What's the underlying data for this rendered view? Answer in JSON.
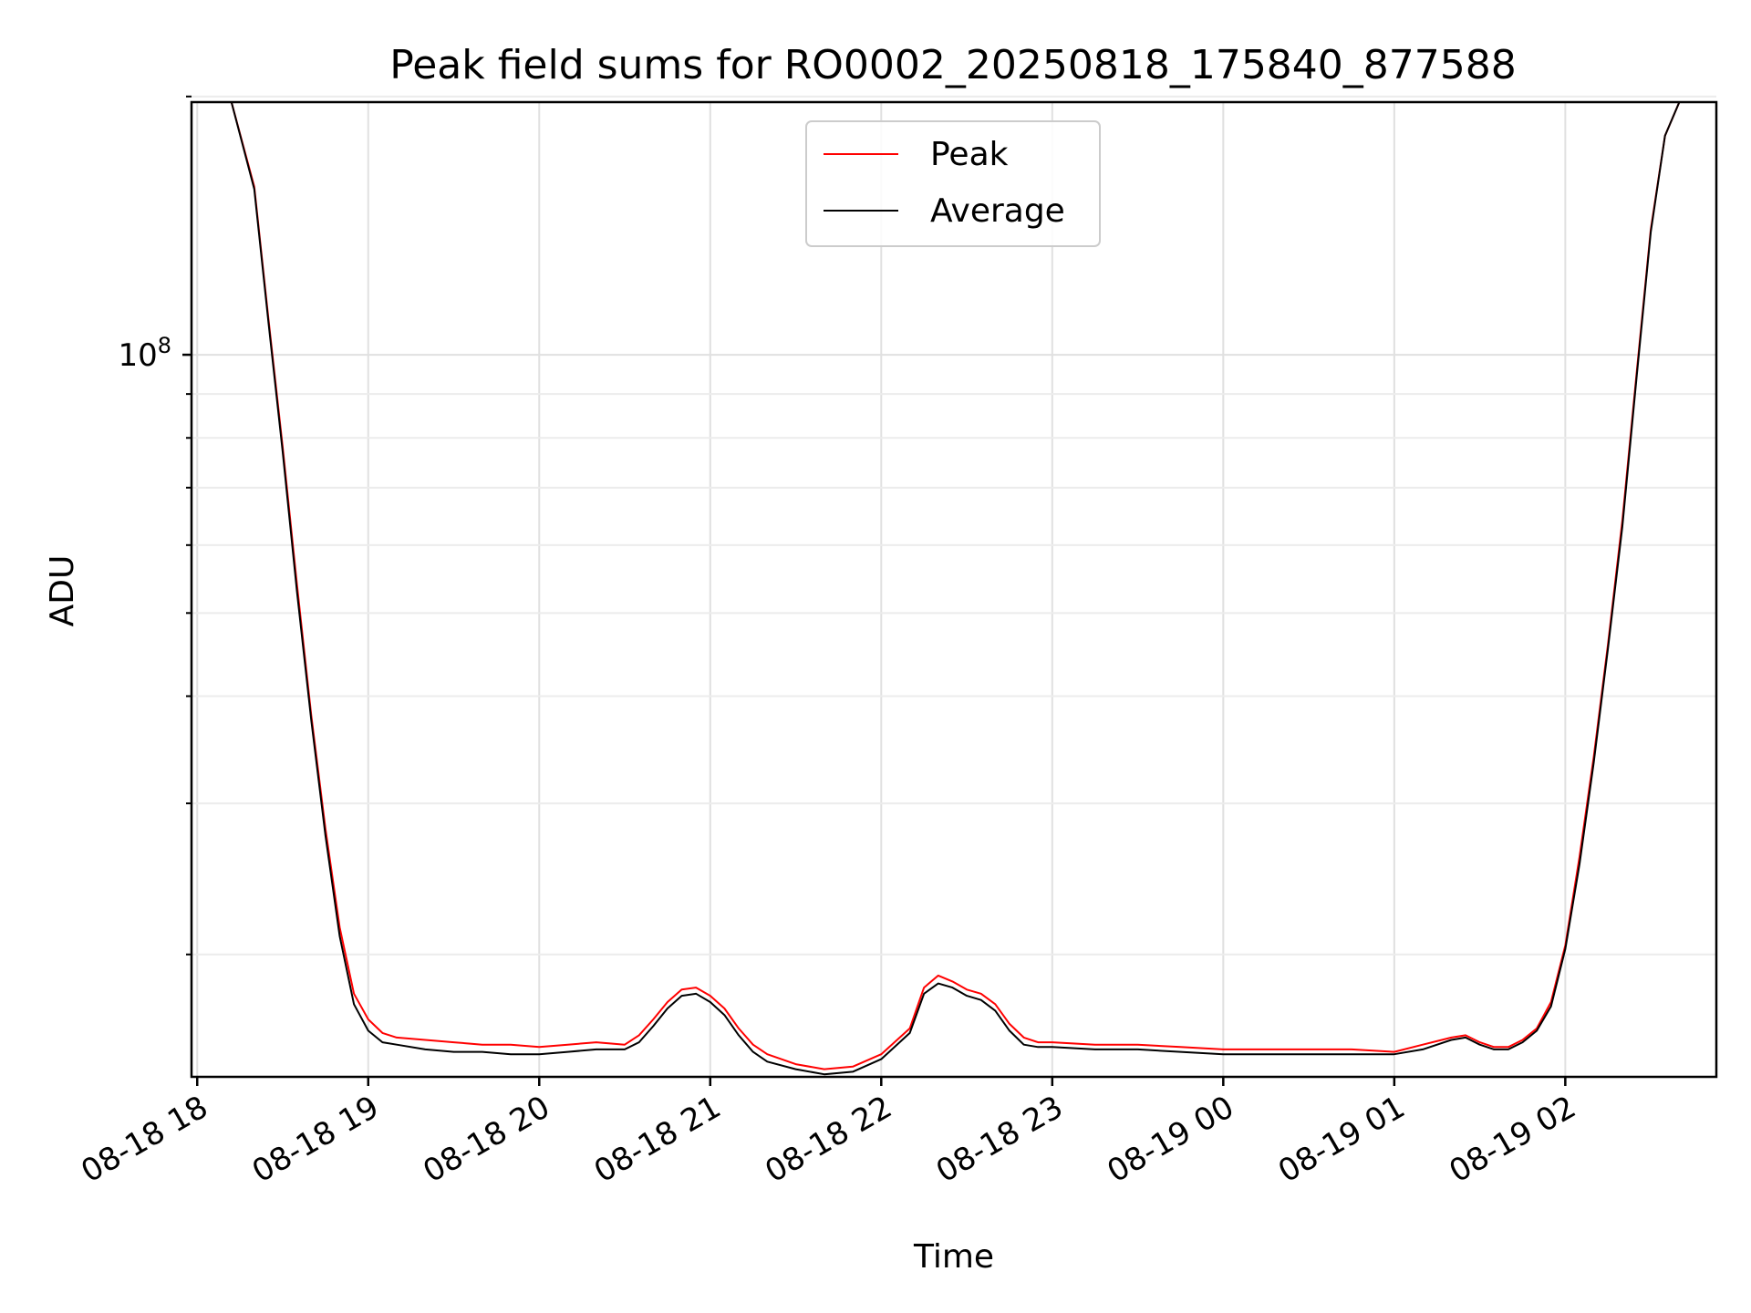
{
  "chart_data": {
    "type": "line",
    "title": "Peak field sums for RO0002_20250818_175840_877588",
    "xlabel": "Time",
    "ylabel": "ADU",
    "y_scale": "log",
    "ylim": [
      14400000,
      197000000
    ],
    "y_major_ticks": [
      {
        "value": 100000000,
        "base": "10",
        "exp": "8"
      }
    ],
    "y_minor_ticks": [
      20000000,
      30000000,
      40000000,
      50000000,
      60000000,
      70000000,
      80000000,
      90000000,
      200000000
    ],
    "xlim": [
      "2025-08-18 17:58",
      "2025-08-19 02:53"
    ],
    "x_ticks": [
      {
        "t": "2025-08-18 18:00",
        "label": "08-18 18"
      },
      {
        "t": "2025-08-18 19:00",
        "label": "08-18 19"
      },
      {
        "t": "2025-08-18 20:00",
        "label": "08-18 20"
      },
      {
        "t": "2025-08-18 21:00",
        "label": "08-18 21"
      },
      {
        "t": "2025-08-18 22:00",
        "label": "08-18 22"
      },
      {
        "t": "2025-08-18 23:00",
        "label": "08-18 23"
      },
      {
        "t": "2025-08-19 00:00",
        "label": "08-19 00"
      },
      {
        "t": "2025-08-19 01:00",
        "label": "08-19 01"
      },
      {
        "t": "2025-08-19 02:00",
        "label": "08-19 02"
      }
    ],
    "grid": true,
    "legend_position": "top-center",
    "x": [
      "2025-08-18 18:12",
      "2025-08-18 18:20",
      "2025-08-18 18:25",
      "2025-08-18 18:30",
      "2025-08-18 18:35",
      "2025-08-18 18:40",
      "2025-08-18 18:45",
      "2025-08-18 18:50",
      "2025-08-18 18:55",
      "2025-08-18 19:00",
      "2025-08-18 19:05",
      "2025-08-18 19:10",
      "2025-08-18 19:20",
      "2025-08-18 19:30",
      "2025-08-18 19:40",
      "2025-08-18 19:50",
      "2025-08-18 20:00",
      "2025-08-18 20:10",
      "2025-08-18 20:20",
      "2025-08-18 20:30",
      "2025-08-18 20:35",
      "2025-08-18 20:40",
      "2025-08-18 20:45",
      "2025-08-18 20:50",
      "2025-08-18 20:55",
      "2025-08-18 21:00",
      "2025-08-18 21:05",
      "2025-08-18 21:10",
      "2025-08-18 21:15",
      "2025-08-18 21:20",
      "2025-08-18 21:30",
      "2025-08-18 21:40",
      "2025-08-18 21:50",
      "2025-08-18 22:00",
      "2025-08-18 22:10",
      "2025-08-18 22:15",
      "2025-08-18 22:20",
      "2025-08-18 22:25",
      "2025-08-18 22:30",
      "2025-08-18 22:35",
      "2025-08-18 22:40",
      "2025-08-18 22:45",
      "2025-08-18 22:50",
      "2025-08-18 22:55",
      "2025-08-18 23:00",
      "2025-08-18 23:15",
      "2025-08-18 23:30",
      "2025-08-18 23:45",
      "2025-08-19 00:00",
      "2025-08-19 00:15",
      "2025-08-19 00:30",
      "2025-08-19 00:45",
      "2025-08-19 01:00",
      "2025-08-19 01:10",
      "2025-08-19 01:20",
      "2025-08-19 01:25",
      "2025-08-19 01:30",
      "2025-08-19 01:35",
      "2025-08-19 01:40",
      "2025-08-19 01:45",
      "2025-08-19 01:50",
      "2025-08-19 01:55",
      "2025-08-19 02:00",
      "2025-08-19 02:05",
      "2025-08-19 02:10",
      "2025-08-19 02:15",
      "2025-08-19 02:20",
      "2025-08-19 02:25",
      "2025-08-19 02:30",
      "2025-08-19 02:35",
      "2025-08-19 02:40",
      "2025-08-19 02:45"
    ],
    "series": [
      {
        "name": "Peak",
        "color": "#ff0000",
        "values": [
          197000000,
          157000000,
          110000000,
          78000000,
          54000000,
          38000000,
          28000000,
          21500000,
          18000000,
          16800000,
          16200000,
          16000000,
          15900000,
          15800000,
          15700000,
          15700000,
          15600000,
          15700000,
          15800000,
          15700000,
          16100000,
          16800000,
          17600000,
          18200000,
          18300000,
          17900000,
          17300000,
          16400000,
          15700000,
          15300000,
          14900000,
          14700000,
          14800000,
          15300000,
          16400000,
          18300000,
          18900000,
          18600000,
          18200000,
          18000000,
          17500000,
          16600000,
          16000000,
          15800000,
          15800000,
          15700000,
          15700000,
          15600000,
          15500000,
          15500000,
          15500000,
          15500000,
          15400000,
          15700000,
          16000000,
          16100000,
          15800000,
          15600000,
          15600000,
          15900000,
          16400000,
          17600000,
          20500000,
          26000000,
          34000000,
          46000000,
          64000000,
          95000000,
          140000000,
          180000000,
          197000000,
          197000000
        ]
      },
      {
        "name": "Average",
        "color": "#000000",
        "values": [
          197000000,
          156000000,
          109000000,
          77000000,
          53000000,
          37500000,
          27500000,
          21000000,
          17500000,
          16300000,
          15800000,
          15700000,
          15500000,
          15400000,
          15400000,
          15300000,
          15300000,
          15400000,
          15500000,
          15500000,
          15800000,
          16500000,
          17300000,
          17900000,
          18000000,
          17600000,
          17000000,
          16100000,
          15400000,
          15000000,
          14700000,
          14500000,
          14600000,
          15100000,
          16200000,
          18000000,
          18500000,
          18300000,
          17900000,
          17700000,
          17200000,
          16300000,
          15700000,
          15600000,
          15600000,
          15500000,
          15500000,
          15400000,
          15300000,
          15300000,
          15300000,
          15300000,
          15300000,
          15500000,
          15900000,
          16000000,
          15700000,
          15500000,
          15500000,
          15800000,
          16300000,
          17400000,
          20300000,
          25500000,
          33500000,
          45500000,
          63000000,
          94000000,
          139000000,
          180000000,
          197000000,
          197000000
        ]
      }
    ]
  }
}
